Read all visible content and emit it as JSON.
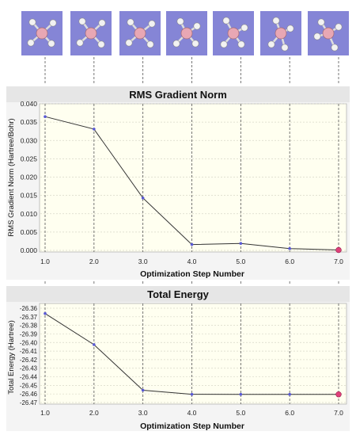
{
  "thumbnails": [
    {
      "step": 1,
      "icon": "molecule-structure-icon"
    },
    {
      "step": 2,
      "icon": "molecule-structure-icon"
    },
    {
      "step": 3,
      "icon": "molecule-structure-icon"
    },
    {
      "step": 4,
      "icon": "molecule-structure-icon"
    },
    {
      "step": 5,
      "icon": "molecule-structure-icon"
    },
    {
      "step": 6,
      "icon": "molecule-structure-icon"
    },
    {
      "step": 7,
      "icon": "molecule-structure-icon"
    }
  ],
  "colors": {
    "thumbnail_bg": "#8585d6",
    "central_atom": "#e8a7b4",
    "outer_atom": "#f2f2f2",
    "plot_bg": "#fffff0",
    "header_bg": "#e6e6e6",
    "line": "#333333",
    "point": "#5a5ad6",
    "current_point": "#e0407a",
    "grid": "#d8d8c8"
  },
  "chart_data": [
    {
      "type": "line",
      "title": "RMS Gradient Norm",
      "xlabel": "Optimization Step Number",
      "ylabel": "RMS Gradient Norm (Hartree/Bohr)",
      "x": [
        1.0,
        2.0,
        3.0,
        4.0,
        5.0,
        6.0,
        7.0
      ],
      "y": [
        0.0365,
        0.0331,
        0.0143,
        0.0016,
        0.0019,
        0.0005,
        0.0001
      ],
      "xlim": [
        1.0,
        7.0
      ],
      "ylim": [
        0.0,
        0.04
      ],
      "xticks": [
        "1.0",
        "2.0",
        "3.0",
        "4.0",
        "5.0",
        "6.0",
        "7.0"
      ],
      "yticks": [
        "0.000",
        "0.005",
        "0.010",
        "0.015",
        "0.020",
        "0.025",
        "0.030",
        "0.035",
        "0.040"
      ],
      "grid": true,
      "current_step": 7.0
    },
    {
      "type": "line",
      "title": "Total Energy",
      "xlabel": "Optimization Step Number",
      "ylabel": "Total Energy (Hartree)",
      "x": [
        1.0,
        2.0,
        3.0,
        4.0,
        5.0,
        6.0,
        7.0
      ],
      "y": [
        -26.3662,
        -26.4025,
        -26.4557,
        -26.4604,
        -26.4605,
        -26.4605,
        -26.4605
      ],
      "xlim": [
        1.0,
        7.0
      ],
      "ylim": [
        -26.47,
        -26.36
      ],
      "xticks": [
        "1.0",
        "2.0",
        "3.0",
        "4.0",
        "5.0",
        "6.0",
        "7.0"
      ],
      "yticks": [
        "-26.36",
        "-26.37",
        "-26.38",
        "-26.39",
        "-26.40",
        "-26.41",
        "-26.42",
        "-26.43",
        "-26.44",
        "-26.45",
        "-26.46",
        "-26.47"
      ],
      "grid": true,
      "current_step": 7.0
    }
  ]
}
